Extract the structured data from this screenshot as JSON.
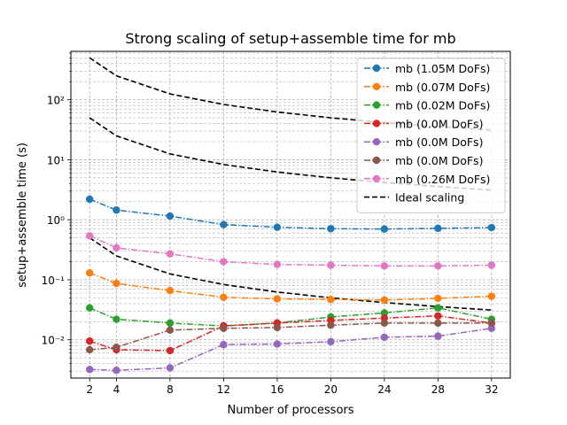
{
  "chart_data": {
    "type": "line",
    "title": "Strong scaling of setup+assemble time for mb",
    "xlabel": "Number of processors",
    "ylabel": "setup+assemble time (s)",
    "xlim": [
      0.6,
      33.4
    ],
    "ylim": [
      0.0023,
      640
    ],
    "yscale": "log",
    "x": [
      2,
      4,
      8,
      12,
      16,
      20,
      24,
      28,
      32
    ],
    "xticks": [
      2,
      4,
      8,
      12,
      16,
      20,
      24,
      28,
      32
    ],
    "yticks": [
      {
        "value": 0.01,
        "label": "10⁻²"
      },
      {
        "value": 0.1,
        "label": "10⁻¹"
      },
      {
        "value": 1,
        "label": "10⁰"
      },
      {
        "value": 10,
        "label": "10¹"
      },
      {
        "value": 100,
        "label": "10²"
      }
    ],
    "grid": "both",
    "legend_position": "top-right",
    "series": [
      {
        "name": "mb (1.05M DoFs)",
        "color": "#1f77b4",
        "values": [
          2.2,
          1.45,
          1.15,
          0.83,
          0.75,
          0.71,
          0.7,
          0.72,
          0.74
        ]
      },
      {
        "name": "mb (0.07M DoFs)",
        "color": "#ff7f0e",
        "values": [
          0.13,
          0.087,
          0.066,
          0.051,
          0.048,
          0.047,
          0.046,
          0.049,
          0.053
        ]
      },
      {
        "name": "mb (0.02M DoFs)",
        "color": "#2ca02c",
        "values": [
          0.034,
          0.022,
          0.019,
          0.017,
          0.019,
          0.024,
          0.028,
          0.034,
          0.022
        ]
      },
      {
        "name": "mb (0.0M DoFs)",
        "color": "#d62728",
        "values": [
          0.0095,
          0.0068,
          0.0066,
          0.017,
          0.019,
          0.021,
          0.023,
          0.025,
          0.019
        ]
      },
      {
        "name": "mb (0.0M DoFs)",
        "color": "#9467bd",
        "values": [
          0.0032,
          0.0031,
          0.0034,
          0.0083,
          0.0085,
          0.0093,
          0.011,
          0.0115,
          0.0155
        ]
      },
      {
        "name": "mb (0.0M DoFs)",
        "color": "#8c564b",
        "values": [
          0.0068,
          0.0075,
          0.0145,
          0.0155,
          0.016,
          0.0175,
          0.019,
          0.019,
          0.019
        ]
      },
      {
        "name": "mb (0.26M DoFs)",
        "color": "#e377c2",
        "values": [
          0.54,
          0.34,
          0.27,
          0.2,
          0.18,
          0.175,
          0.17,
          0.17,
          0.175
        ]
      }
    ],
    "ideal_scaling": {
      "name": "Ideal scaling",
      "color": "#000000",
      "reference_values": [
        500,
        50,
        0.5
      ]
    }
  }
}
